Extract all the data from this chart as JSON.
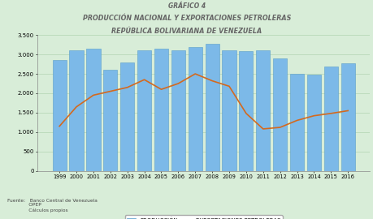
{
  "title_line1": "GRÁFICO 4",
  "title_line2": "PRODUCCIÓN NACIONAL Y EXPORTACIONES PETROLERAS",
  "title_line3": "REPÚBLICA BOLIVARIANA DE VENEZUELA",
  "years": [
    "1999",
    "2000",
    "2001",
    "2002",
    "2003",
    "2004",
    "2005",
    "2006",
    "2007",
    "2008",
    "2009",
    "2010",
    "2011",
    "2012",
    "2013",
    "2014",
    "2015",
    "2016"
  ],
  "produccion": [
    2850,
    3100,
    3150,
    2600,
    2800,
    3100,
    3150,
    3100,
    3200,
    3270,
    3100,
    3080,
    3100,
    2900,
    2500,
    2480,
    2680,
    2780
  ],
  "exportaciones": [
    1150,
    1650,
    1950,
    2050,
    2150,
    2350,
    2100,
    2250,
    2500,
    2320,
    2180,
    1480,
    1080,
    1120,
    1300,
    1420,
    1480,
    1550
  ],
  "bar_color": "#7CB9E8",
  "line_color": "#D4691E",
  "bar_edge_color": "#5A9EC8",
  "background_color": "#D8EDD8",
  "grid_color": "#B8D8B8",
  "ylim": [
    0,
    3500
  ],
  "yticks": [
    0,
    500,
    1000,
    1500,
    2000,
    2500,
    3000,
    3500
  ],
  "ytick_labels": [
    "0",
    "500",
    "1.000",
    "1.500",
    "2.000",
    "2.500",
    "3.000",
    "3.500"
  ],
  "title_fontsize1": 5.5,
  "title_fontsize2": 5.8,
  "legend_label1": "PRODUCCIÓN",
  "legend_label2": "EXPORTACIONES PETROLERAS",
  "source_text": "Fuente:   Banco Central de Venezuela\n              OPEP\n              Cálculos propios",
  "fig_bg_color": "#D8EDD8"
}
